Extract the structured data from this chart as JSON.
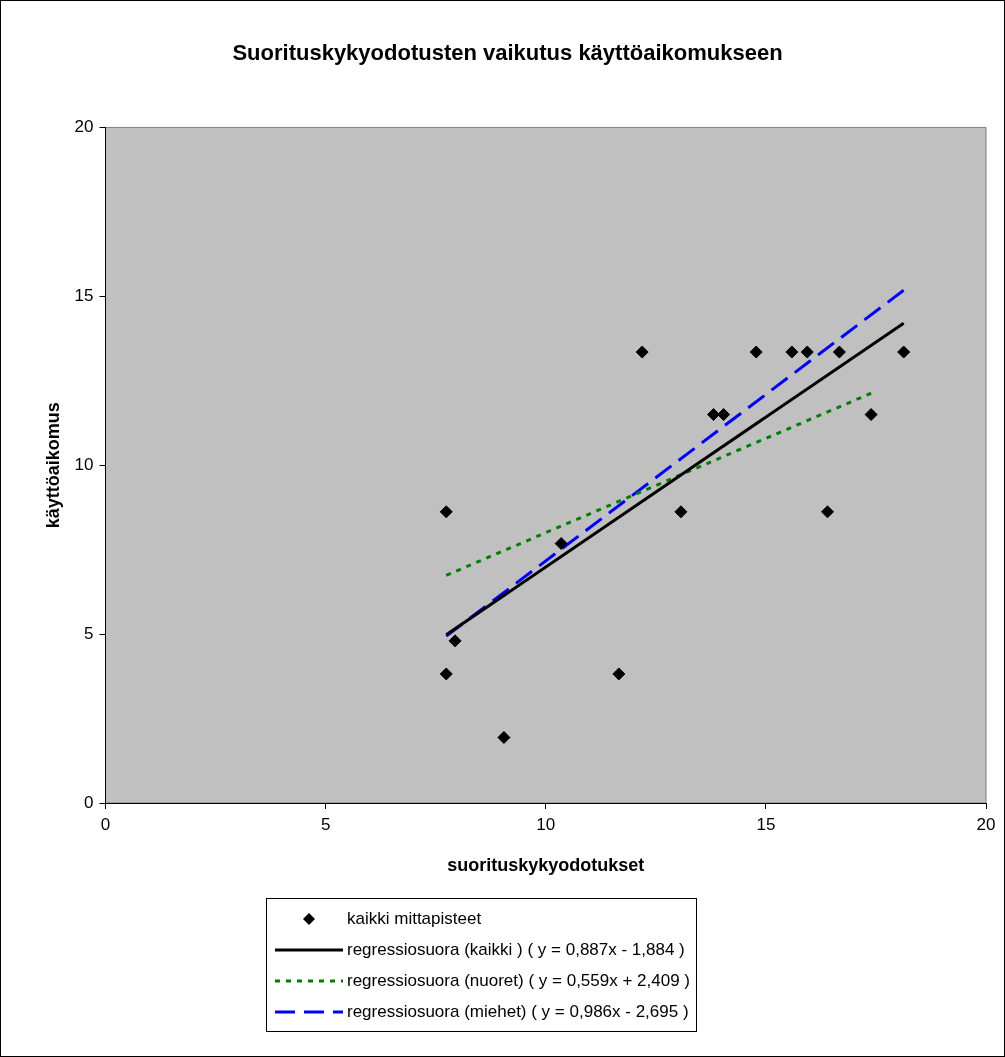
{
  "chart_data": {
    "type": "scatter",
    "title": "Suorituskykyodotusten vaikutus käyttöaikomukseen",
    "xlabel": "suorituskykyodotukset",
    "ylabel": "käyttöaikomus",
    "xlim": [
      0,
      20
    ],
    "ylim": [
      0,
      20
    ],
    "xticks": [
      0,
      5,
      10,
      15,
      20
    ],
    "yticks": [
      0,
      5,
      10,
      15,
      20
    ],
    "grid": false,
    "legend": "bottom",
    "series": [
      {
        "name": "kaikki mittapisteet",
        "marker": "diamond",
        "color": "#000000",
        "x": [
          7.74,
          7.74,
          7.94,
          9.05,
          10.35,
          11.66,
          12.19,
          13.07,
          13.81,
          14.04,
          14.78,
          15.59,
          15.94,
          16.4,
          16.67,
          17.39,
          18.13
        ],
        "values": [
          3.82,
          8.62,
          4.8,
          1.94,
          7.68,
          3.82,
          13.35,
          8.62,
          11.5,
          11.5,
          13.35,
          13.35,
          13.35,
          8.62,
          13.35,
          11.5,
          13.35
        ]
      },
      {
        "name": "regressiosuora (kaikki ) ( y = 0,887x - 1,884 )",
        "type": "line",
        "marker": "none",
        "line_style": "solid",
        "color": "#000000",
        "x": [
          7.74,
          18.13
        ],
        "values": [
          4.98,
          14.2
        ]
      },
      {
        "name": "regressiosuora (nuoret) ( y = 0,559x + 2,409 )",
        "type": "line",
        "marker": "none",
        "line_style": "dotted",
        "color": "#008000",
        "x": [
          7.74,
          17.39
        ],
        "values": [
          6.74,
          12.13
        ]
      },
      {
        "name": "regressiosuora (miehet) ( y = 0,986x - 2,695 )",
        "type": "line",
        "marker": "none",
        "line_style": "dashed",
        "color": "#0000ff",
        "x": [
          7.74,
          18.13
        ],
        "values": [
          4.94,
          15.18
        ]
      }
    ]
  }
}
